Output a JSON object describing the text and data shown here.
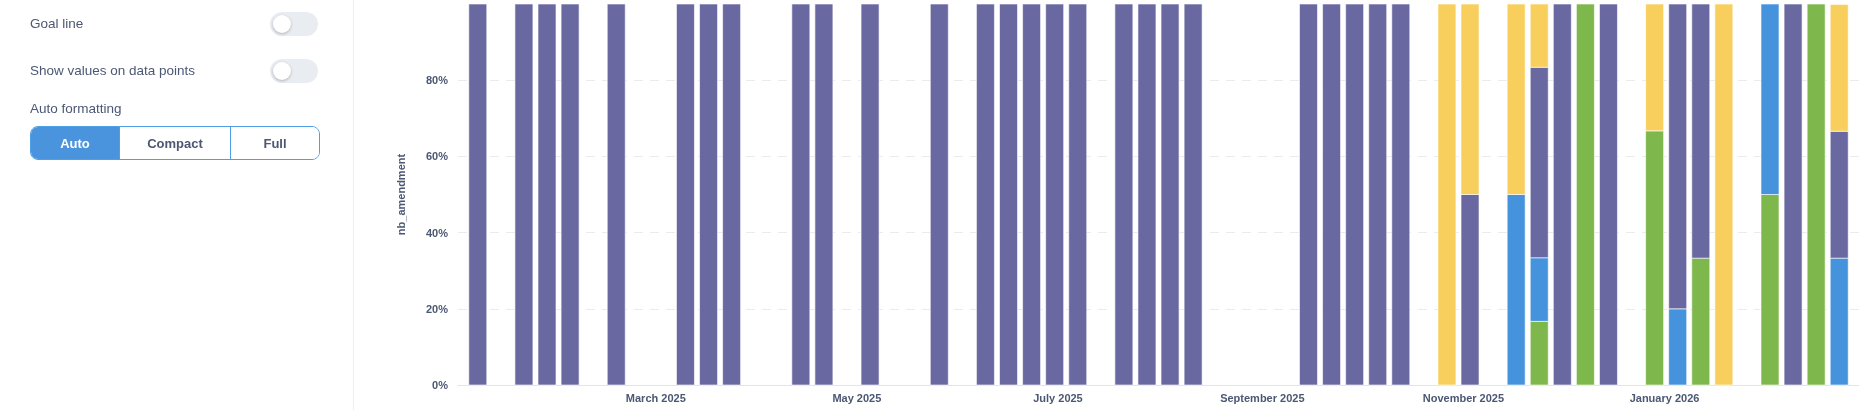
{
  "chart_data": [
    {
      "type": "other",
      "annotations": [
        "Goal line",
        "Show values on data points",
        "Auto formatting",
        "Auto",
        "Compact",
        "Full"
      ]
    },
    {
      "type": "bar",
      "stacked": true,
      "ylabel": "nb_amendment",
      "x": [
        "2025-01-06",
        "2025-01-20",
        "2025-01-27",
        "2025-02-03",
        "2025-02-17",
        "2025-03-10",
        "2025-03-17",
        "2025-03-24",
        "2025-04-14",
        "2025-04-21",
        "2025-05-05",
        "2025-05-26",
        "2025-06-09",
        "2025-06-16",
        "2025-06-23",
        "2025-06-30",
        "2025-07-07",
        "2025-07-21",
        "2025-07-28",
        "2025-08-04",
        "2025-08-11",
        "2025-09-15",
        "2025-09-22",
        "2025-09-29",
        "2025-10-06",
        "2025-10-13",
        "2025-10-27",
        "2025-11-03",
        "2025-11-17",
        "2025-11-24",
        "2025-12-01",
        "2025-12-08",
        "2025-12-15",
        "2025-12-29",
        "2026-01-05",
        "2026-01-12",
        "2026-01-19",
        "2026-02-02",
        "2026-02-09",
        "2026-02-16",
        "2026-02-23"
      ],
      "series": [
        {
          "color": "#7eb74c",
          "values": [
            null,
            null,
            null,
            null,
            null,
            null,
            null,
            null,
            null,
            null,
            null,
            null,
            null,
            null,
            null,
            null,
            null,
            null,
            null,
            null,
            null,
            null,
            null,
            null,
            null,
            null,
            null,
            null,
            null,
            16.7,
            null,
            100,
            null,
            66.7,
            null,
            33.3,
            null,
            50,
            null,
            100,
            null
          ]
        },
        {
          "color": "#4493dc",
          "values": [
            null,
            null,
            null,
            null,
            null,
            null,
            null,
            null,
            null,
            null,
            null,
            null,
            null,
            null,
            null,
            null,
            null,
            null,
            null,
            null,
            null,
            null,
            null,
            null,
            null,
            null,
            null,
            null,
            50,
            16.7,
            null,
            null,
            null,
            null,
            20,
            null,
            null,
            50,
            null,
            null,
            33.3
          ]
        },
        {
          "color": "#6a68a1",
          "values": [
            100,
            100,
            100,
            100,
            100,
            100,
            100,
            100,
            100,
            100,
            100,
            100,
            100,
            100,
            100,
            100,
            100,
            100,
            100,
            100,
            100,
            100,
            100,
            100,
            100,
            100,
            null,
            50,
            null,
            50,
            100,
            null,
            100,
            null,
            80,
            66.7,
            null,
            null,
            100,
            null,
            33.3
          ]
        },
        {
          "color": "#f8cf5d",
          "values": [
            null,
            null,
            null,
            null,
            null,
            null,
            null,
            null,
            null,
            null,
            null,
            null,
            null,
            null,
            null,
            null,
            null,
            null,
            null,
            null,
            null,
            null,
            null,
            null,
            null,
            null,
            100,
            50,
            50,
            16.6,
            null,
            null,
            null,
            33.3,
            null,
            null,
            100,
            null,
            null,
            null,
            33.3
          ]
        }
      ],
      "xlim": [
        "2024-12-31",
        "2026-03-01"
      ],
      "xticks": [
        {
          "value": "2025-03-01",
          "label": "March 2025"
        },
        {
          "value": "2025-05-01",
          "label": "May 2025"
        },
        {
          "value": "2025-07-01",
          "label": "July 2025"
        },
        {
          "value": "2025-09-01",
          "label": "September 2025"
        },
        {
          "value": "2025-11-01",
          "label": "November 2025"
        },
        {
          "value": "2026-01-01",
          "label": "January 2026"
        }
      ],
      "ylim": [
        0,
        100
      ],
      "yticks": [
        {
          "value": 0,
          "label": "0%"
        },
        {
          "value": 20,
          "label": "20%"
        },
        {
          "value": 40,
          "label": "40%"
        },
        {
          "value": 60,
          "label": "60%"
        },
        {
          "value": 80,
          "label": "80%"
        }
      ],
      "grid": "y"
    }
  ]
}
